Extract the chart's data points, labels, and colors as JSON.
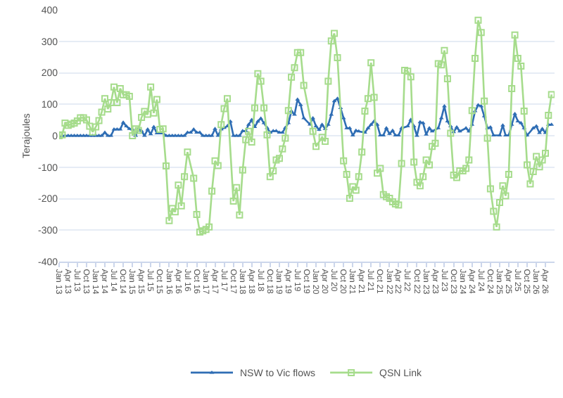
{
  "chart_data": {
    "type": "line",
    "ylabel": "Terajoules",
    "ylim": [
      -400,
      400
    ],
    "yticks": [
      -400,
      -300,
      -200,
      -100,
      0,
      100,
      200,
      300,
      400
    ],
    "grid": "y",
    "legend": "bottom",
    "xlim": [
      "2013-01",
      "2026-07"
    ],
    "xticks": [
      {
        "value": "2013-01",
        "label": "Jan 13"
      },
      {
        "value": "2013-04",
        "label": "Apr 13"
      },
      {
        "value": "2013-07",
        "label": "Jul 13"
      },
      {
        "value": "2013-10",
        "label": "Oct 13"
      },
      {
        "value": "2014-01",
        "label": "Jan 14"
      },
      {
        "value": "2014-04",
        "label": "Apr 14"
      },
      {
        "value": "2014-07",
        "label": "Jul 14"
      },
      {
        "value": "2014-10",
        "label": "Oct 14"
      },
      {
        "value": "2015-01",
        "label": "Jan 15"
      },
      {
        "value": "2015-04",
        "label": "Apr 15"
      },
      {
        "value": "2015-07",
        "label": "Jul 15"
      },
      {
        "value": "2015-10",
        "label": "Oct 15"
      },
      {
        "value": "2016-01",
        "label": "Jan 16"
      },
      {
        "value": "2016-04",
        "label": "Apr 16"
      },
      {
        "value": "2016-07",
        "label": "Jul 16"
      },
      {
        "value": "2016-10",
        "label": "Oct 16"
      },
      {
        "value": "2017-01",
        "label": "Jan 17"
      },
      {
        "value": "2017-04",
        "label": "Apr 17"
      },
      {
        "value": "2017-07",
        "label": "Jul 17"
      },
      {
        "value": "2017-10",
        "label": "Oct 17"
      },
      {
        "value": "2018-01",
        "label": "Jan 18"
      },
      {
        "value": "2018-04",
        "label": "Apr 18"
      },
      {
        "value": "2018-07",
        "label": "Jul 18"
      },
      {
        "value": "2018-10",
        "label": "Oct 18"
      },
      {
        "value": "2019-01",
        "label": "Jan 19"
      },
      {
        "value": "2019-04",
        "label": "Apr 19"
      },
      {
        "value": "2019-07",
        "label": "Jul 19"
      },
      {
        "value": "2019-10",
        "label": "Oct 19"
      },
      {
        "value": "2020-01",
        "label": "Jan 20"
      },
      {
        "value": "2020-04",
        "label": "Apr 20"
      },
      {
        "value": "2020-07",
        "label": "Jul 20"
      },
      {
        "value": "2020-10",
        "label": "Oct 20"
      },
      {
        "value": "2021-01",
        "label": "Jan 21"
      },
      {
        "value": "2021-04",
        "label": "Apr 21"
      },
      {
        "value": "2021-07",
        "label": "Jul 21"
      },
      {
        "value": "2021-10",
        "label": "Oct 21"
      },
      {
        "value": "2022-01",
        "label": "Jan 22"
      },
      {
        "value": "2022-04",
        "label": "Apr 22"
      },
      {
        "value": "2022-07",
        "label": "Jul 22"
      },
      {
        "value": "2022-10",
        "label": "Oct 22"
      },
      {
        "value": "2023-01",
        "label": "Jan 23"
      },
      {
        "value": "2023-04",
        "label": "Apr 23"
      },
      {
        "value": "2023-07",
        "label": "Jul 23"
      },
      {
        "value": "2023-10",
        "label": "Oct 23"
      },
      {
        "value": "2024-01",
        "label": "Jan 24"
      },
      {
        "value": "2024-04",
        "label": "Apr 24"
      },
      {
        "value": "2024-07",
        "label": "Jul 24"
      },
      {
        "value": "2024-10",
        "label": "Oct 24"
      },
      {
        "value": "2025-01",
        "label": "Jan 25"
      },
      {
        "value": "2025-04",
        "label": "Apr 25"
      },
      {
        "value": "2025-07",
        "label": "Jul 25"
      },
      {
        "value": "2025-10",
        "label": "Oct 25"
      },
      {
        "value": "2026-01",
        "label": "Jan 26"
      },
      {
        "value": "2026-04",
        "label": "Apr 26"
      }
    ],
    "series": [
      {
        "name": "NSW to Vic flows",
        "color": "#2e6db4",
        "marker": "triangle",
        "x": [
          "2013-01",
          "2013-02",
          "2013-03",
          "2013-04",
          "2013-05",
          "2013-06",
          "2013-07",
          "2013-08",
          "2013-09",
          "2013-10",
          "2013-11",
          "2013-12",
          "2014-01",
          "2014-02",
          "2014-03",
          "2014-04",
          "2014-05",
          "2014-06",
          "2014-07",
          "2014-08",
          "2014-09",
          "2014-10",
          "2014-11",
          "2014-12",
          "2015-01",
          "2015-02",
          "2015-03",
          "2015-04",
          "2015-05",
          "2015-06",
          "2015-07",
          "2015-08",
          "2015-09",
          "2015-10",
          "2015-11",
          "2015-12",
          "2016-01",
          "2016-02",
          "2016-03",
          "2016-04",
          "2016-05",
          "2016-06",
          "2016-07",
          "2016-08",
          "2016-09",
          "2016-10",
          "2016-11",
          "2016-12",
          "2017-01",
          "2017-02",
          "2017-03",
          "2017-04",
          "2017-05",
          "2017-06",
          "2017-07",
          "2017-08",
          "2017-09",
          "2017-10",
          "2017-11",
          "2017-12",
          "2018-01",
          "2018-02",
          "2018-03",
          "2018-04",
          "2018-05",
          "2018-06",
          "2018-07",
          "2018-08",
          "2018-09",
          "2018-10",
          "2018-11",
          "2018-12",
          "2019-01",
          "2019-02",
          "2019-03",
          "2019-04",
          "2019-05",
          "2019-06",
          "2019-07",
          "2019-08",
          "2019-09",
          "2019-11",
          "2019-12",
          "2020-01",
          "2020-02",
          "2020-03",
          "2020-04",
          "2020-05",
          "2020-06",
          "2020-07",
          "2020-08",
          "2020-09",
          "2020-10",
          "2020-11",
          "2020-12",
          "2021-01",
          "2021-02",
          "2021-03",
          "2021-05",
          "2021-06",
          "2021-07",
          "2021-08",
          "2021-09",
          "2021-10",
          "2021-11",
          "2021-12",
          "2022-01",
          "2022-02",
          "2022-03",
          "2022-04",
          "2022-05",
          "2022-07",
          "2022-08",
          "2022-09",
          "2022-10",
          "2022-11",
          "2022-12",
          "2023-01",
          "2023-02",
          "2023-03",
          "2023-05",
          "2023-06",
          "2023-07",
          "2023-08",
          "2023-09",
          "2023-10",
          "2023-11",
          "2023-12",
          "2024-02",
          "2024-03",
          "2024-04",
          "2024-05",
          "2024-06",
          "2024-07",
          "2024-08",
          "2024-09",
          "2024-10",
          "2024-11",
          "2025-01",
          "2025-02",
          "2025-03",
          "2025-04",
          "2025-05",
          "2025-06",
          "2025-07",
          "2025-08",
          "2025-09",
          "2025-10",
          "2025-12",
          "2026-01",
          "2026-02",
          "2026-03",
          "2026-04",
          "2026-05",
          "2026-06"
        ],
        "values": [
          0,
          0,
          0,
          0,
          0,
          0,
          0,
          0,
          0,
          0,
          0,
          0,
          0,
          0,
          0,
          10,
          0,
          0,
          20,
          20,
          20,
          42,
          30,
          22,
          20,
          0,
          22,
          15,
          0,
          20,
          5,
          28,
          8,
          8,
          8,
          0,
          0,
          0,
          0,
          0,
          0,
          0,
          10,
          10,
          20,
          10,
          10,
          0,
          0,
          0,
          0,
          22,
          0,
          20,
          25,
          30,
          45,
          0,
          0,
          0,
          15,
          15,
          35,
          50,
          28,
          45,
          55,
          40,
          25,
          10,
          15,
          15,
          10,
          10,
          25,
          40,
          78,
          67,
          115,
          98,
          56,
          36,
          56,
          30,
          19,
          35,
          22,
          35,
          67,
          110,
          118,
          88,
          56,
          24,
          24,
          1,
          16,
          14,
          10,
          24,
          35,
          46,
          35,
          1,
          1,
          24,
          6,
          16,
          1,
          1,
          24,
          30,
          51,
          30,
          0,
          43,
          40,
          4,
          24,
          14,
          24,
          56,
          94,
          46,
          30,
          12,
          27,
          14,
          24,
          14,
          35,
          78,
          97,
          94,
          62,
          24,
          27,
          1,
          1,
          33,
          1,
          1,
          35,
          69,
          46,
          40,
          24,
          1,
          24,
          30,
          9,
          22,
          9,
          35,
          35
        ]
      },
      {
        "name": "QSN Link",
        "color": "#a6dc8c",
        "marker": "square",
        "x": [
          "2013-01",
          "2013-02",
          "2013-03",
          "2013-04",
          "2013-05",
          "2013-06",
          "2013-07",
          "2013-08",
          "2013-09",
          "2013-10",
          "2013-11",
          "2013-12",
          "2014-01",
          "2014-02",
          "2014-03",
          "2014-04",
          "2014-05",
          "2014-06",
          "2014-07",
          "2014-08",
          "2014-09",
          "2014-10",
          "2014-11",
          "2014-12",
          "2015-01",
          "2015-02",
          "2015-03",
          "2015-04",
          "2015-05",
          "2015-06",
          "2015-07",
          "2015-08",
          "2015-09",
          "2015-10",
          "2015-11",
          "2015-12",
          "2016-01",
          "2016-02",
          "2016-03",
          "2016-04",
          "2016-05",
          "2016-06",
          "2016-07",
          "2016-09",
          "2016-10",
          "2016-11",
          "2016-12",
          "2017-01",
          "2017-02",
          "2017-03",
          "2017-04",
          "2017-05",
          "2017-06",
          "2017-07",
          "2017-08",
          "2017-10",
          "2017-11",
          "2017-12",
          "2018-01",
          "2018-02",
          "2018-03",
          "2018-04",
          "2018-05",
          "2018-06",
          "2018-07",
          "2018-08",
          "2018-09",
          "2018-10",
          "2018-11",
          "2018-12",
          "2019-01",
          "2019-02",
          "2019-03",
          "2019-04",
          "2019-05",
          "2019-06",
          "2019-07",
          "2019-08",
          "2019-09",
          "2019-12",
          "2020-01",
          "2020-03",
          "2020-04",
          "2020-05",
          "2020-06",
          "2020-07",
          "2020-08",
          "2020-10",
          "2020-11",
          "2020-12",
          "2021-01",
          "2021-02",
          "2021-03",
          "2021-04",
          "2021-05",
          "2021-06",
          "2021-07",
          "2021-08",
          "2021-09",
          "2021-10",
          "2021-11",
          "2021-12",
          "2022-01",
          "2022-02",
          "2022-03",
          "2022-04",
          "2022-05",
          "2022-06",
          "2022-07",
          "2022-08",
          "2022-09",
          "2022-10",
          "2022-11",
          "2022-12",
          "2023-01",
          "2023-02",
          "2023-03",
          "2023-04",
          "2023-05",
          "2023-06",
          "2023-07",
          "2023-08",
          "2023-09",
          "2023-10",
          "2023-11",
          "2023-12",
          "2024-01",
          "2024-02",
          "2024-03",
          "2024-04",
          "2024-05",
          "2024-06",
          "2024-07",
          "2024-08",
          "2024-09",
          "2024-10",
          "2024-11",
          "2024-12",
          "2025-01",
          "2025-02",
          "2025-03",
          "2025-04",
          "2025-05",
          "2025-06",
          "2025-07",
          "2025-08",
          "2025-09",
          "2025-10",
          "2025-11",
          "2025-12",
          "2026-01",
          "2026-02",
          "2026-03",
          "2026-04",
          "2026-05",
          "2026-06"
        ],
        "values": [
          0,
          3,
          40,
          33,
          37,
          40,
          47,
          57,
          57,
          50,
          30,
          12,
          28,
          48,
          75,
          118,
          85,
          105,
          155,
          105,
          150,
          130,
          130,
          125,
          0,
          22,
          17,
          58,
          77,
          68,
          155,
          72,
          115,
          20,
          22,
          -96,
          -270,
          -231,
          -242,
          -157,
          -223,
          -130,
          -52,
          -135,
          -250,
          -306,
          -302,
          -298,
          -290,
          -176,
          -80,
          -95,
          35,
          86,
          118,
          -208,
          -165,
          -252,
          -109,
          -13,
          14,
          -20,
          88,
          197,
          173,
          88,
          3,
          -130,
          -112,
          -77,
          -72,
          -42,
          -8,
          80,
          186,
          216,
          264,
          264,
          160,
          14,
          -34,
          -5,
          -18,
          173,
          301,
          325,
          248,
          -80,
          -123,
          -199,
          -162,
          -173,
          -130,
          -52,
          78,
          118,
          232,
          122,
          -119,
          -104,
          -187,
          -194,
          -199,
          -210,
          -217,
          -220,
          -88,
          208,
          205,
          187,
          -84,
          -148,
          -159,
          -130,
          -77,
          -93,
          -34,
          -24,
          229,
          225,
          271,
          181,
          8,
          -125,
          -133,
          -112,
          -112,
          -104,
          -77,
          80,
          246,
          367,
          328,
          110,
          -8,
          -169,
          -240,
          -290,
          -212,
          -159,
          -191,
          -123,
          150,
          320,
          246,
          221,
          78,
          -93,
          -153,
          -114,
          -66,
          -99,
          -77,
          -56,
          65,
          131
        ]
      }
    ]
  }
}
